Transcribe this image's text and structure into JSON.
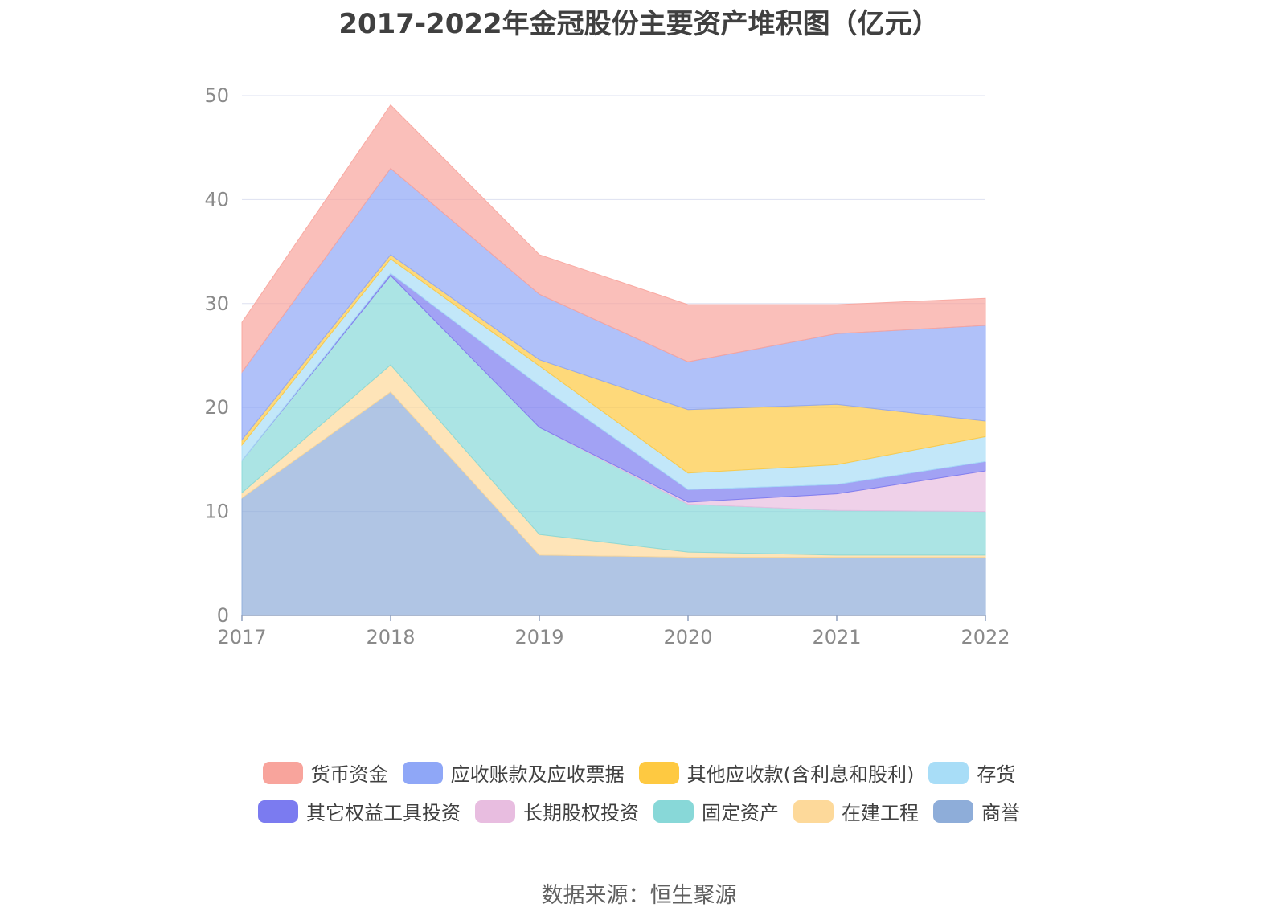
{
  "title": "2017-2022年金冠股份主要资产堆积图（亿元）",
  "source": "数据来源：恒生聚源",
  "chart_data": {
    "type": "area",
    "stacked": true,
    "x": [
      "2017",
      "2018",
      "2019",
      "2020",
      "2021",
      "2022"
    ],
    "ylim": [
      0,
      50
    ],
    "yticks": [
      0,
      10,
      20,
      30,
      40,
      50
    ],
    "grid": true,
    "legend_position": "bottom",
    "series": [
      {
        "name": "商誉",
        "color": "#8eadd9",
        "values": [
          11.3,
          21.5,
          5.8,
          5.6,
          5.6,
          5.6
        ]
      },
      {
        "name": "在建工程",
        "color": "#fdd99a",
        "values": [
          0.5,
          2.6,
          2.0,
          0.5,
          0.2,
          0.2
        ]
      },
      {
        "name": "固定资产",
        "color": "#88d8d8",
        "values": [
          3.1,
          8.6,
          10.3,
          4.6,
          4.3,
          4.2
        ]
      },
      {
        "name": "长期股权投资",
        "color": "#e8bde0",
        "values": [
          0.0,
          0.0,
          0.0,
          0.2,
          1.6,
          3.9
        ]
      },
      {
        "name": "其它权益工具投资",
        "color": "#7b7bf0",
        "values": [
          0.0,
          0.2,
          4.0,
          1.2,
          0.9,
          0.9
        ]
      },
      {
        "name": "存货",
        "color": "#a8ddf7",
        "values": [
          1.5,
          1.4,
          1.9,
          1.6,
          1.9,
          2.4
        ]
      },
      {
        "name": "其他应收款(含利息和股利)",
        "color": "#fec941",
        "values": [
          0.5,
          0.4,
          0.6,
          6.1,
          5.8,
          1.5
        ]
      },
      {
        "name": "应收账款及应收票据",
        "color": "#8fa7f7",
        "values": [
          6.5,
          8.3,
          6.3,
          4.6,
          6.8,
          9.2
        ]
      },
      {
        "name": "货币资金",
        "color": "#f8a49c",
        "values": [
          4.8,
          6.1,
          3.8,
          5.5,
          2.8,
          2.6
        ]
      }
    ]
  },
  "legend": [
    {
      "label": "货币资金",
      "color": "#f8a49c"
    },
    {
      "label": "应收账款及应收票据",
      "color": "#8fa7f7"
    },
    {
      "label": "其他应收款(含利息和股利)",
      "color": "#fec941"
    },
    {
      "label": "存货",
      "color": "#a8ddf7"
    },
    {
      "label": "其它权益工具投资",
      "color": "#7b7bf0"
    },
    {
      "label": "长期股权投资",
      "color": "#e8bde0"
    },
    {
      "label": "固定资产",
      "color": "#88d8d8"
    },
    {
      "label": "在建工程",
      "color": "#fdd99a"
    },
    {
      "label": "商誉",
      "color": "#8eadd9"
    }
  ]
}
